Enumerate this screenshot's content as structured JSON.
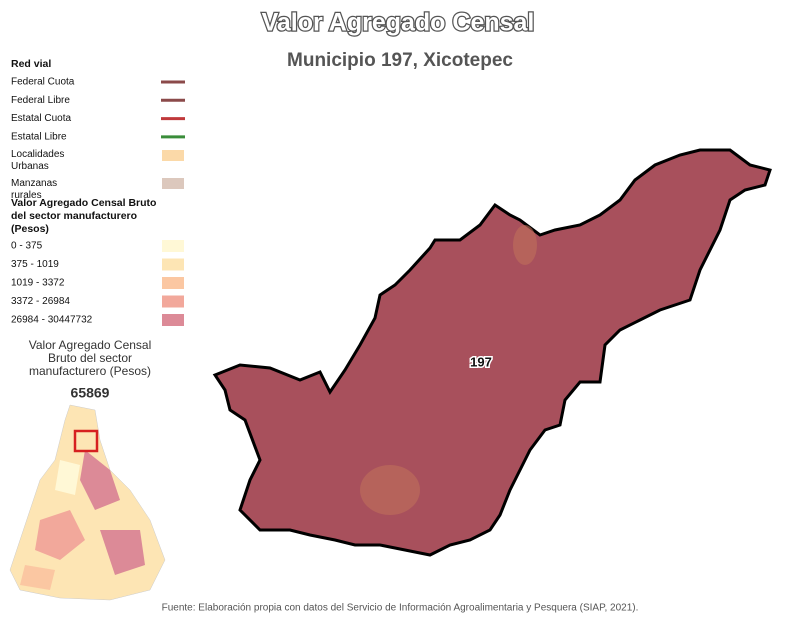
{
  "header": {
    "title": "Valor Agregado Censal",
    "subtitle": "Municipio 197, Xicotepec"
  },
  "legend": {
    "roads_title": "Red vial",
    "roads": [
      {
        "label": "Federal Cuota",
        "color": "#8b4a4a"
      },
      {
        "label": "Federal Libre",
        "color": "#8b4a4a"
      },
      {
        "label": "Estatal Cuota",
        "color": "#c0393b"
      },
      {
        "label": "Estatal Libre",
        "color": "#3a8d3a"
      }
    ],
    "areas": [
      {
        "label": "Localidades Urbanas",
        "color": "#fbd9a8"
      },
      {
        "label": "Manzanas rurales",
        "color": "#dcc8bd"
      }
    ],
    "classes_title": "Valor Agregado Censal Bruto del sector manufacturero (Pesos)",
    "classes": [
      {
        "label": "0 - 375",
        "color": "#fff8d6"
      },
      {
        "label": "375 - 1019",
        "color": "#fde5b4"
      },
      {
        "label": "1019 - 3372",
        "color": "#fbc7a2"
      },
      {
        "label": "3372 - 26984",
        "color": "#f2a89b"
      },
      {
        "label": "26984 - 30447732",
        "color": "#dc8a97"
      }
    ]
  },
  "inset": {
    "caption": "Valor Agregado Censal Bruto del sector manufacturero (Pesos)",
    "value": "65869"
  },
  "map": {
    "label": "197"
  },
  "source": "Fuente: Elaboración propia con datos del Servicio de Información Agroalimentaria y Pesquera (SIAP, 2021)."
}
